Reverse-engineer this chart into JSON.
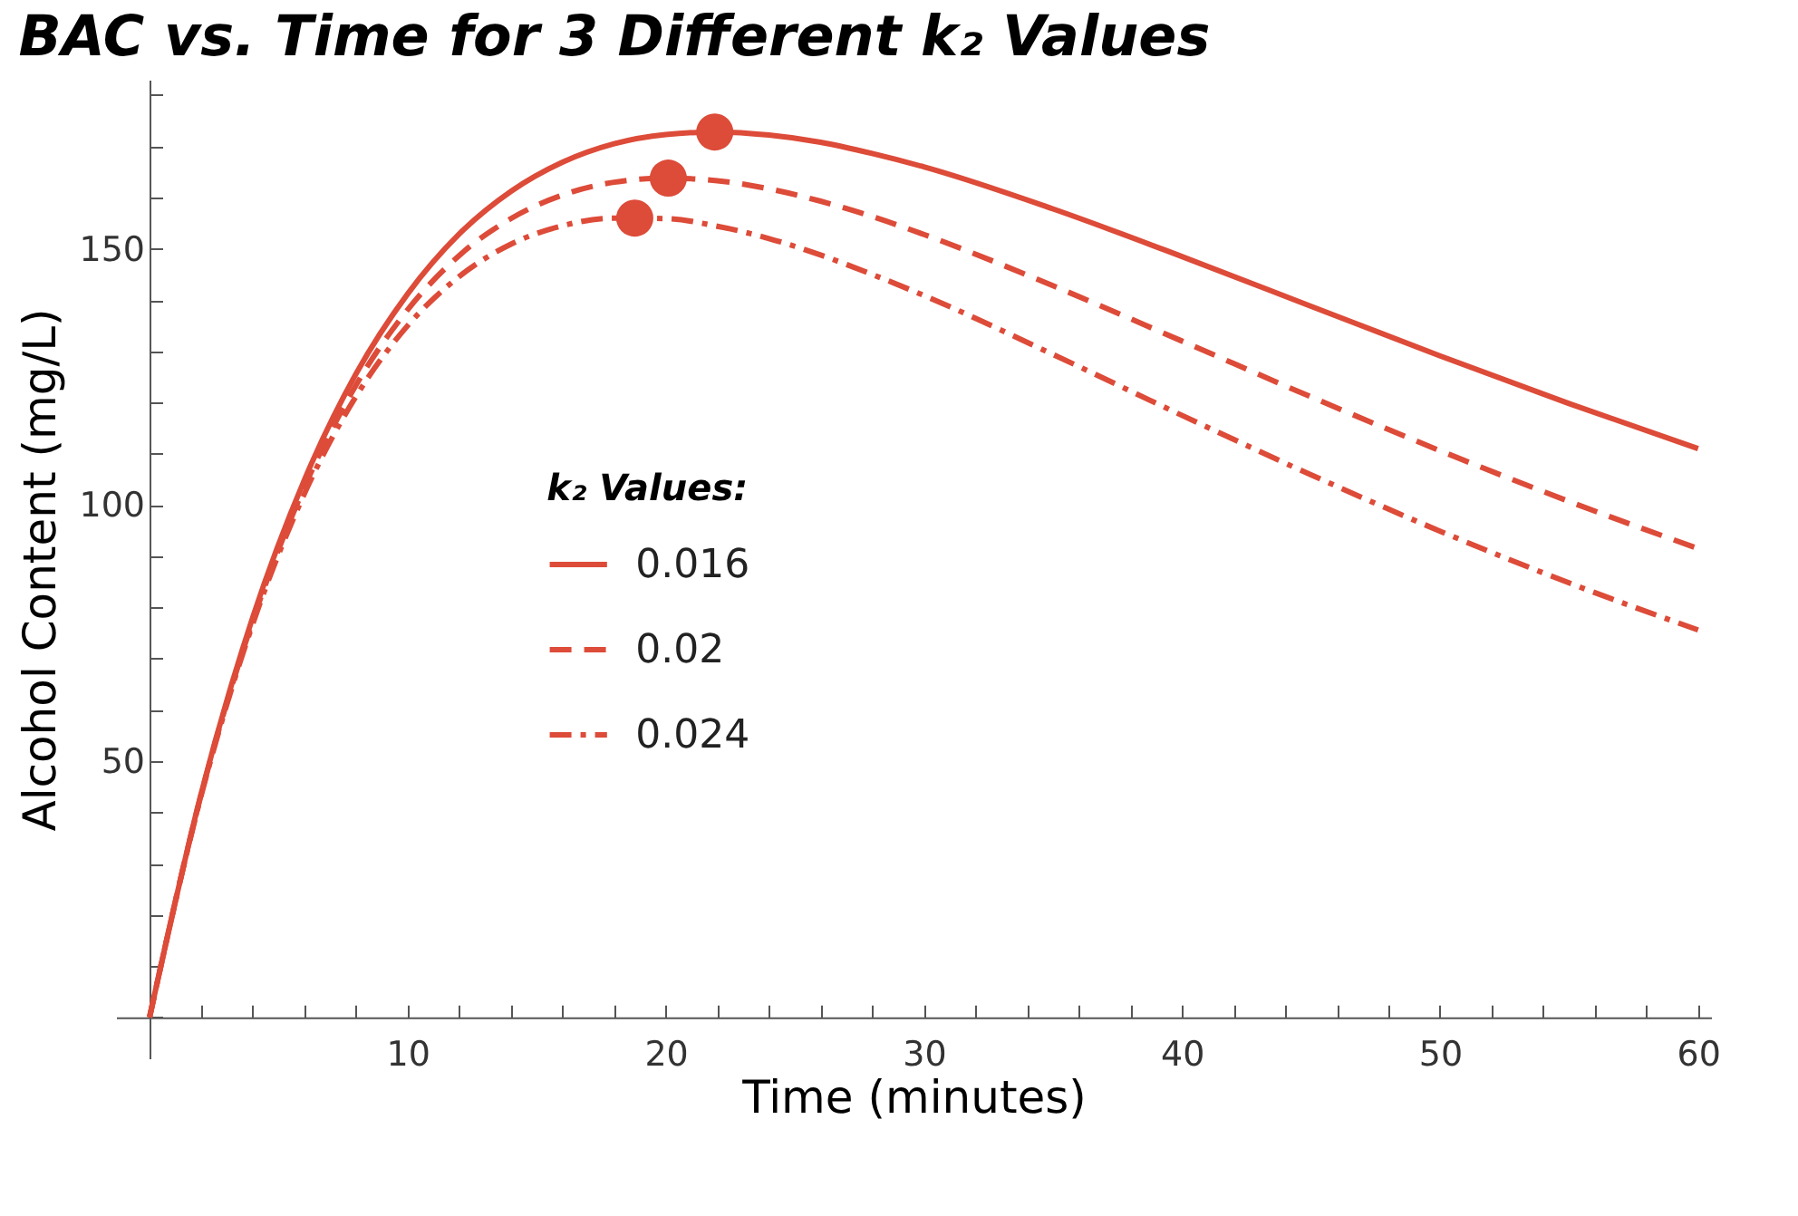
{
  "chart_data": {
    "type": "line",
    "title": "BAC vs. Time for 3 Different k₂ Values",
    "xlabel": "Time (minutes)",
    "ylabel": "Alcohol Content (mg/L)",
    "legend_title": "k₂ Values:",
    "legend": "left",
    "grid": false,
    "marker": "none",
    "x": [
      0,
      2,
      4,
      6,
      8,
      10,
      12,
      14,
      16,
      18,
      20,
      22,
      24,
      26,
      28,
      30,
      35,
      40,
      45,
      50,
      55,
      60
    ],
    "series": [
      {
        "name": "0.016",
        "color": "#dd4b39",
        "line_style": "solid",
        "values": [
          0,
          43.7,
          78.1,
          104.9,
          125.6,
          141.2,
          152.9,
          161.2,
          166.9,
          170.5,
          172.3,
          172.8,
          172.2,
          170.8,
          168.6,
          166.0,
          157.8,
          148.5,
          138.8,
          129.1,
          119.8,
          111.0
        ]
      },
      {
        "name": "0.02",
        "color": "#dd4b39",
        "line_style": "dashed",
        "values": [
          0,
          43.5,
          77.4,
          103.5,
          123.4,
          138.1,
          148.7,
          155.9,
          160.5,
          163.0,
          163.8,
          163.3,
          161.7,
          159.3,
          156.3,
          152.8,
          142.8,
          132.0,
          121.1,
          110.6,
          100.7,
          91.5
        ]
      },
      {
        "name": "0.024",
        "color": "#dd4b39",
        "line_style": "dashdot",
        "values": [
          0,
          43.3,
          76.8,
          102.2,
          121.2,
          135.0,
          144.6,
          150.9,
          154.5,
          156.0,
          155.9,
          154.4,
          152.0,
          148.8,
          145.0,
          140.9,
          129.4,
          117.5,
          105.9,
          94.9,
          84.8,
          75.6
        ]
      },
      {
        "type": "scatter",
        "marker": "circle",
        "color": "#dd4b39",
        "x": [
          21.9,
          20.1,
          18.8
        ],
        "values": [
          172.8,
          163.8,
          156.0
        ]
      }
    ],
    "xlim": [
      -1.3,
      60.5
    ],
    "ylim": [
      -8,
      183
    ],
    "xticks": [
      {
        "value": 0,
        "label": null
      },
      {
        "value": 2,
        "label": null
      },
      {
        "value": 4,
        "label": null
      },
      {
        "value": 6,
        "label": null
      },
      {
        "value": 8,
        "label": null
      },
      10,
      {
        "value": 12,
        "label": null
      },
      {
        "value": 14,
        "label": null
      },
      {
        "value": 16,
        "label": null
      },
      {
        "value": 18,
        "label": null
      },
      20,
      {
        "value": 22,
        "label": null
      },
      {
        "value": 24,
        "label": null
      },
      {
        "value": 26,
        "label": null
      },
      {
        "value": 28,
        "label": null
      },
      30,
      {
        "value": 32,
        "label": null
      },
      {
        "value": 34,
        "label": null
      },
      {
        "value": 36,
        "label": null
      },
      {
        "value": 38,
        "label": null
      },
      40,
      {
        "value": 42,
        "label": null
      },
      {
        "value": 44,
        "label": null
      },
      {
        "value": 46,
        "label": null
      },
      {
        "value": 48,
        "label": null
      },
      50,
      {
        "value": 52,
        "label": null
      },
      {
        "value": 54,
        "label": null
      },
      {
        "value": 56,
        "label": null
      },
      {
        "value": 58,
        "label": null
      },
      60
    ],
    "yticks": [
      {
        "value": 0,
        "label": null
      },
      {
        "value": 10,
        "label": null
      },
      {
        "value": 20,
        "label": null
      },
      {
        "value": 30,
        "label": null
      },
      {
        "value": 40,
        "label": null
      },
      50,
      {
        "value": 60,
        "label": null
      },
      {
        "value": 70,
        "label": null
      },
      {
        "value": 80,
        "label": null
      },
      {
        "value": 90,
        "label": null
      },
      100,
      {
        "value": 110,
        "label": null
      },
      {
        "value": 120,
        "label": null
      },
      {
        "value": 130,
        "label": null
      },
      {
        "value": 140,
        "label": null
      },
      150,
      {
        "value": 160,
        "label": null
      },
      {
        "value": 170,
        "label": null
      },
      {
        "value": 180,
        "label": null
      }
    ]
  }
}
